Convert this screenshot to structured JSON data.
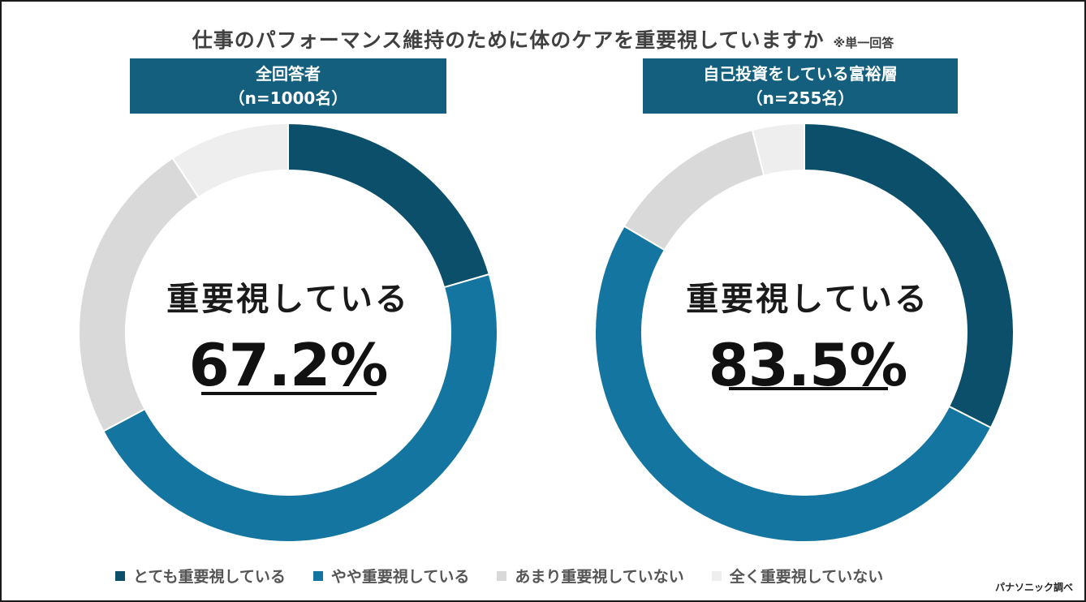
{
  "title": "仕事のパフォーマンス維持のために体のケアを重要視していますか",
  "title_note": "※単一回答",
  "center_label": "重要視している",
  "colors": {
    "very": "#0b4f6a",
    "somewhat": "#1475a0",
    "not_much": "#d9d9d9",
    "not_at_all": "#eeeeee",
    "header_bg": "#145f7d"
  },
  "legend": [
    {
      "label": "とても重要視している",
      "color": "#0b4f6a"
    },
    {
      "label": "やや重要視している",
      "color": "#1475a0"
    },
    {
      "label": "あまり重要視していない",
      "color": "#d9d9d9"
    },
    {
      "label": "全く重要視していない",
      "color": "#eeeeee"
    }
  ],
  "source": "パナソニック調べ",
  "chart_data": [
    {
      "type": "pie",
      "title_line1": "全回答者",
      "title_line2": "（n=1000名）",
      "center_value": "67.2%",
      "categories": [
        "とても重要視している",
        "やや重要視している",
        "あまり重要視していない",
        "全く重要視していない"
      ],
      "values": [
        20.5,
        46.7,
        23.5,
        9.3
      ]
    },
    {
      "type": "pie",
      "title_line1": "自己投資をしている富裕層",
      "title_line2": "（n=255名）",
      "center_value": "83.5%",
      "categories": [
        "とても重要視している",
        "やや重要視している",
        "あまり重要視していない",
        "全く重要視していない"
      ],
      "values": [
        32.5,
        51.0,
        12.5,
        4.0
      ]
    }
  ]
}
